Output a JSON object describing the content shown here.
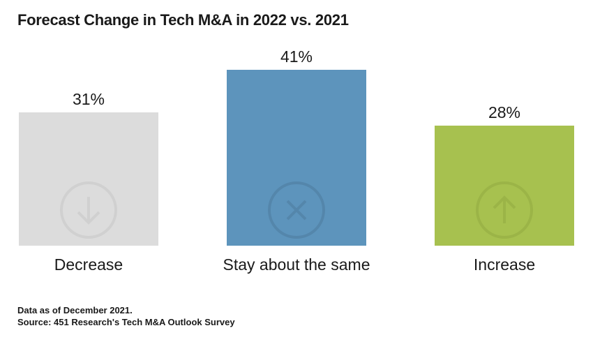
{
  "title": "Forecast Change in Tech M&A in 2022 vs. 2021",
  "footnotes": {
    "line1": "Data as of December 2021.",
    "line2": "Source: 451 Research's Tech M&A Outlook Survey"
  },
  "chart_data": {
    "type": "bar",
    "title": "Forecast Change in Tech M&A in 2022 vs. 2021",
    "categories": [
      "Decrease",
      "Stay about the same",
      "Increase"
    ],
    "values": [
      31,
      41,
      28
    ],
    "value_labels": [
      "31%",
      "41%",
      "28%"
    ],
    "bar_colors": [
      "#dcdcdc",
      "#5d94bc",
      "#a7c14f"
    ],
    "icon_names": [
      "arrow-down-circle-icon",
      "x-circle-icon",
      "arrow-up-circle-icon"
    ],
    "icon_colors": [
      "#d0d0d0",
      "#5486ab",
      "#9bb447"
    ],
    "xlabel": "",
    "ylabel": "",
    "ylim": [
      0,
      41
    ],
    "grid": false,
    "legend": "none",
    "axes_shown": false,
    "footnotes": [
      "Data as of December 2021.",
      "Source: 451 Research's Tech M&A Outlook Survey"
    ]
  }
}
